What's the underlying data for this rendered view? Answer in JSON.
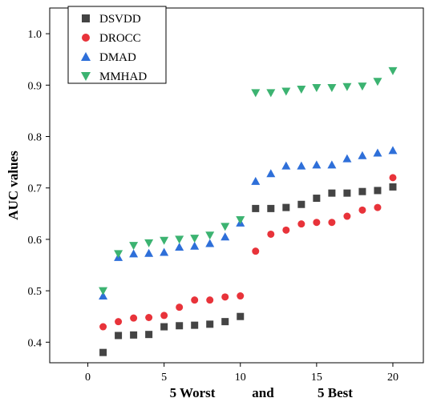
{
  "chart_data": {
    "type": "scatter",
    "xlabel_parts": [
      "5 Worst",
      "and",
      "5 Best"
    ],
    "ylabel": "AUC values",
    "xlim": [
      -2.5,
      22
    ],
    "ylim": [
      0.36,
      1.05
    ],
    "xticks": [
      0,
      5,
      10,
      15,
      20
    ],
    "yticks": [
      0.4,
      0.5,
      0.6,
      0.7,
      0.8,
      0.9,
      1.0
    ],
    "grid": false,
    "legend_position": "top-left",
    "series": [
      {
        "name": "DSVDD",
        "marker": "square",
        "color": "#444444",
        "x": [
          1,
          2,
          3,
          4,
          5,
          6,
          7,
          8,
          9,
          10,
          11,
          12,
          13,
          14,
          15,
          16,
          17,
          18,
          19,
          20
        ],
        "y": [
          0.38,
          0.413,
          0.414,
          0.415,
          0.43,
          0.432,
          0.433,
          0.435,
          0.44,
          0.45,
          0.66,
          0.66,
          0.662,
          0.668,
          0.68,
          0.69,
          0.69,
          0.693,
          0.695,
          0.702
        ]
      },
      {
        "name": "DROCC",
        "marker": "circle",
        "color": "#e8333a",
        "x": [
          1,
          2,
          3,
          4,
          5,
          6,
          7,
          8,
          9,
          10,
          11,
          12,
          13,
          14,
          15,
          16,
          17,
          18,
          19,
          20
        ],
        "y": [
          0.43,
          0.44,
          0.447,
          0.448,
          0.452,
          0.468,
          0.482,
          0.482,
          0.488,
          0.49,
          0.577,
          0.61,
          0.618,
          0.63,
          0.633,
          0.633,
          0.645,
          0.657,
          0.662,
          0.72
        ]
      },
      {
        "name": "DMAD",
        "marker": "triangle-up",
        "color": "#2e6fd9",
        "x": [
          1,
          2,
          3,
          4,
          5,
          6,
          7,
          8,
          9,
          10,
          11,
          12,
          13,
          14,
          15,
          16,
          17,
          18,
          19,
          20
        ],
        "y": [
          0.49,
          0.565,
          0.572,
          0.573,
          0.575,
          0.585,
          0.587,
          0.592,
          0.605,
          0.632,
          0.713,
          0.728,
          0.743,
          0.743,
          0.745,
          0.745,
          0.757,
          0.763,
          0.768,
          0.773
        ]
      },
      {
        "name": "MMHAD",
        "marker": "triangle-down",
        "color": "#3cb371",
        "x": [
          1,
          2,
          3,
          4,
          5,
          6,
          7,
          8,
          9,
          10,
          11,
          12,
          13,
          14,
          15,
          16,
          17,
          18,
          19,
          20
        ],
        "y": [
          0.5,
          0.572,
          0.588,
          0.593,
          0.598,
          0.6,
          0.602,
          0.608,
          0.625,
          0.638,
          0.885,
          0.885,
          0.888,
          0.892,
          0.895,
          0.895,
          0.897,
          0.898,
          0.907,
          0.928
        ]
      }
    ]
  }
}
